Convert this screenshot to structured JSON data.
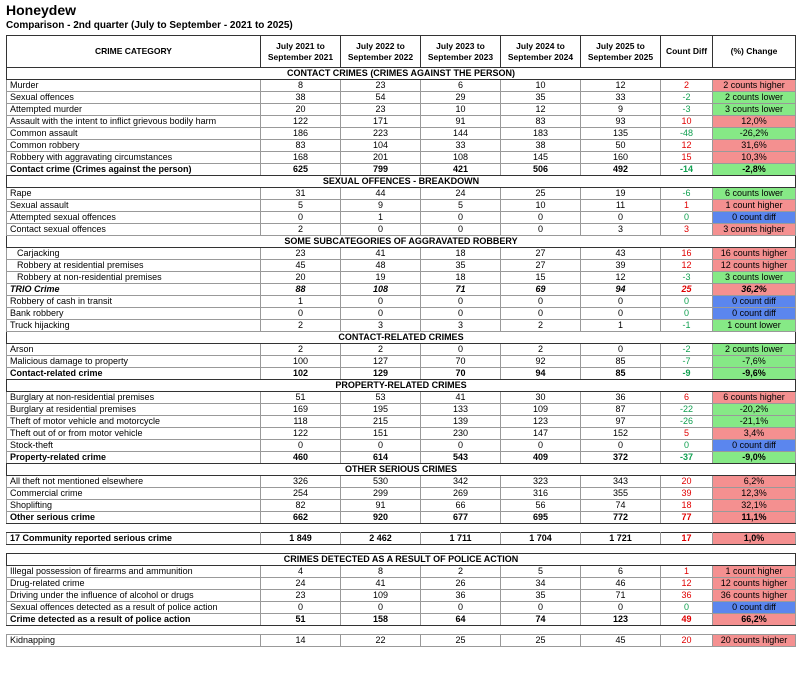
{
  "header": {
    "title": "Honeydew",
    "subtitle": "Comparison - 2nd quarter (July to September - 2021 to 2025)"
  },
  "table": {
    "columns": [
      "CRIME CATEGORY",
      "July 2021 to September 2021",
      "July 2022 to September 2022",
      "July 2023 to September 2023",
      "July 2024 to September 2024",
      "July 2025 to September 2025",
      "Count Diff",
      "(%) Change"
    ],
    "blocks": [
      {
        "title": "CONTACT CRIMES (CRIMES AGAINST THE  PERSON)",
        "rows": [
          [
            "Murder",
            8,
            23,
            6,
            10,
            12,
            2,
            "2 counts higher"
          ],
          [
            "Sexual offences",
            38,
            54,
            29,
            35,
            33,
            -2,
            "2 counts lower"
          ],
          [
            "Attempted murder",
            20,
            23,
            10,
            12,
            9,
            -3,
            "3 counts lower"
          ],
          [
            "Assault with the intent to inflict grievous bodily harm",
            122,
            171,
            91,
            83,
            93,
            10,
            "12,0%"
          ],
          [
            "Common assault",
            186,
            223,
            144,
            183,
            135,
            -48,
            "-26,2%"
          ],
          [
            "Common robbery",
            83,
            104,
            33,
            38,
            50,
            12,
            "31,6%"
          ],
          [
            "Robbery with aggravating circumstances",
            168,
            201,
            108,
            145,
            160,
            15,
            "10,3%"
          ],
          [
            "Contact crime (Crimes against the person)",
            625,
            799,
            421,
            506,
            492,
            -14,
            "-2,8%"
          ]
        ]
      },
      {
        "title": "SEXUAL OFFENCES - BREAKDOWN",
        "rows": [
          [
            "Rape",
            31,
            44,
            24,
            25,
            19,
            -6,
            "6 counts lower"
          ],
          [
            "Sexual assault",
            5,
            9,
            5,
            10,
            11,
            1,
            "1 count higher"
          ],
          [
            "Attempted sexual offences",
            0,
            1,
            0,
            0,
            0,
            0,
            "0 count diff"
          ],
          [
            "Contact sexual offences",
            2,
            0,
            0,
            0,
            3,
            3,
            "3 counts higher"
          ]
        ]
      },
      {
        "title": "SOME SUBCATEGORIES OF AGGRAVATED ROBBERY",
        "rows": [
          [
            "Carjacking",
            23,
            41,
            18,
            27,
            43,
            16,
            "16 counts higher"
          ],
          [
            "Robbery at residential premises",
            45,
            48,
            35,
            27,
            39,
            12,
            "12 counts higher"
          ],
          [
            "Robbery at non-residential premises",
            20,
            19,
            18,
            15,
            12,
            -3,
            "3 counts lower"
          ],
          [
            "TRIO Crime",
            88,
            108,
            71,
            69,
            94,
            25,
            "36,2%"
          ],
          [
            "Robbery of cash in transit",
            1,
            0,
            0,
            0,
            0,
            0,
            "0 count diff"
          ],
          [
            "Bank robbery",
            0,
            0,
            0,
            0,
            0,
            0,
            "0 count diff"
          ],
          [
            "Truck hijacking",
            2,
            3,
            3,
            2,
            1,
            -1,
            "1 count lower"
          ]
        ]
      },
      {
        "title": "CONTACT-RELATED CRIMES",
        "rows": [
          [
            "Arson",
            2,
            2,
            0,
            2,
            0,
            -2,
            "2 counts lower"
          ],
          [
            "Malicious damage to property",
            100,
            127,
            70,
            92,
            85,
            -7,
            "-7,6%"
          ],
          [
            "Contact-related crime",
            102,
            129,
            70,
            94,
            85,
            -9,
            "-9,6%"
          ]
        ]
      },
      {
        "title": "PROPERTY-RELATED CRIMES",
        "rows": [
          [
            "Burglary at non-residential premises",
            51,
            53,
            41,
            30,
            36,
            6,
            "6 counts higher"
          ],
          [
            "Burglary at residential premises",
            169,
            195,
            133,
            109,
            87,
            -22,
            "-20,2%"
          ],
          [
            "Theft of motor vehicle and motorcycle",
            118,
            215,
            139,
            123,
            97,
            -26,
            "-21,1%"
          ],
          [
            "Theft out of or from motor vehicle",
            122,
            151,
            230,
            147,
            152,
            5,
            "3,4%"
          ],
          [
            "Stock-theft",
            0,
            0,
            0,
            0,
            0,
            0,
            "0 count diff"
          ],
          [
            "Property-related crime",
            460,
            614,
            543,
            409,
            372,
            -37,
            "-9,0%"
          ]
        ]
      },
      {
        "title": "OTHER SERIOUS CRIMES",
        "rows": [
          [
            "All theft not mentioned elsewhere",
            326,
            530,
            342,
            323,
            343,
            20,
            "6,2%"
          ],
          [
            "Commercial crime",
            254,
            299,
            269,
            316,
            355,
            39,
            "12,3%"
          ],
          [
            "Shoplifting",
            82,
            91,
            66,
            56,
            74,
            18,
            "32,1%"
          ],
          [
            "Other serious crime",
            662,
            920,
            677,
            695,
            772,
            77,
            "11,1%"
          ]
        ]
      },
      {
        "rows": [
          [
            "17 Community reported serious crime",
            "1 849",
            "2 462",
            "1 711",
            "1 704",
            "1 721",
            17,
            "1,0%"
          ]
        ]
      },
      {
        "title": "CRIMES DETECTED AS A RESULT OF POLICE ACTION",
        "rows": [
          [
            "Illegal possession of firearms and ammunition",
            4,
            8,
            2,
            5,
            6,
            1,
            "1 count higher"
          ],
          [
            "Drug-related crime",
            24,
            41,
            26,
            34,
            46,
            12,
            "12 counts higher"
          ],
          [
            "Driving under the influence of alcohol or drugs",
            23,
            109,
            36,
            35,
            71,
            36,
            "36 counts higher"
          ],
          [
            "Sexual offences detected as a result of police action",
            0,
            0,
            0,
            0,
            0,
            0,
            "0 count diff"
          ],
          [
            "Crime detected as a result of police action",
            51,
            158,
            64,
            74,
            123,
            49,
            "66,2%"
          ]
        ]
      },
      {
        "rows": [
          [
            "Kidnapping",
            14,
            22,
            25,
            25,
            45,
            20,
            "20 counts higher"
          ]
        ]
      }
    ]
  }
}
